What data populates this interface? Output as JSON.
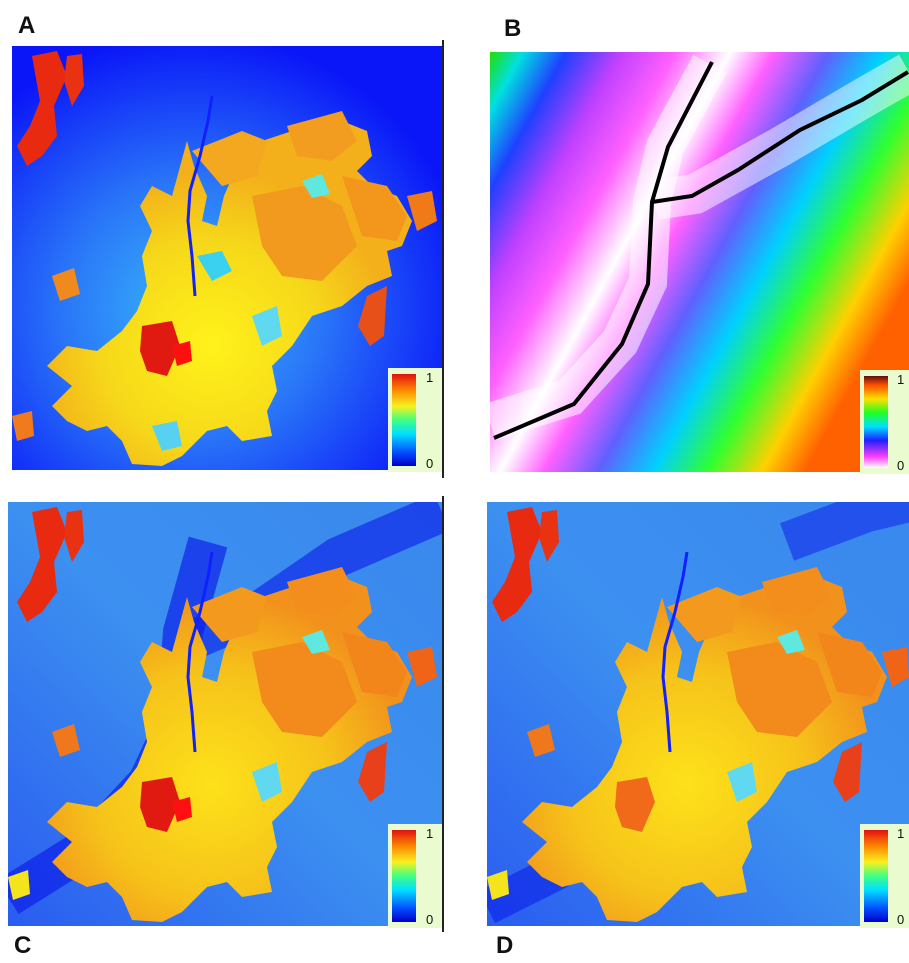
{
  "panels": [
    {
      "letter": "A",
      "colorbar": {
        "max": "1",
        "min": "0",
        "scheme": "jet"
      }
    },
    {
      "letter": "B",
      "colorbar": {
        "max": "1",
        "min": "0",
        "scheme": "cyclic"
      }
    },
    {
      "letter": "C",
      "colorbar": {
        "max": "1",
        "min": "0",
        "scheme": "jet"
      }
    },
    {
      "letter": "D",
      "colorbar": {
        "max": "1",
        "min": "0",
        "scheme": "jet"
      }
    }
  ],
  "colors": {
    "deep_blue": "#1010ff",
    "mid_blue": "#3a8cf0",
    "yellow": "#f4e41c",
    "orange": "#f39a1e",
    "red": "#e42a12",
    "road": "#000000"
  }
}
